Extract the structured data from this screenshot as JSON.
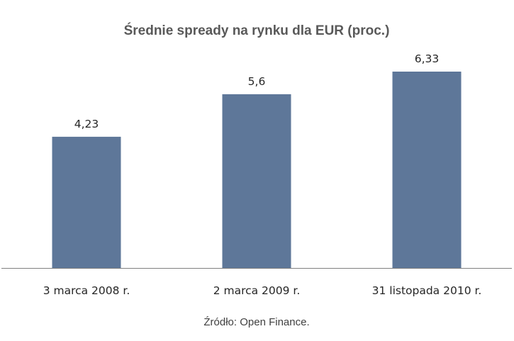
{
  "chart_data": {
    "type": "bar",
    "title": "Średnie spready na rynku dla EUR (proc.)",
    "categories": [
      "3 marca 2008 r.",
      "2 marca 2009 r.",
      "31 listopada 2010 r."
    ],
    "values": [
      4.23,
      5.6,
      6.33
    ],
    "value_labels": [
      "4,23",
      "5,6",
      "6,33"
    ],
    "xlabel": "",
    "ylabel": "",
    "ylim": [
      0,
      6.33
    ],
    "grid": false,
    "legend": "none",
    "colors": {
      "bar": "#5E7799",
      "axis": "#7F7F7F"
    }
  },
  "source_note": "Źródło: Open Finance."
}
